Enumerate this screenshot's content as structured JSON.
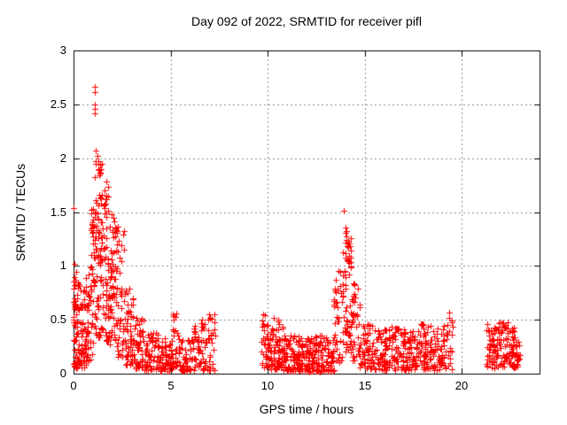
{
  "style": {
    "marker_color": "#ff0000",
    "grid_color": "#8c8c8c",
    "axis_color": "#000000",
    "background": "#ffffff",
    "text_color": "#000000"
  },
  "chart_data": {
    "type": "scatter",
    "title": "Day 092 of 2022, SRMTID for receiver pifl",
    "xlabel": "GPS time / hours",
    "ylabel": "SRMTID / TECUs",
    "xlim": [
      0,
      24
    ],
    "ylim": [
      0,
      3
    ],
    "grid": true,
    "legend": "none",
    "marker": "plus",
    "marker_size_px": 7,
    "xticks": [
      {
        "value": 0,
        "label": "0"
      },
      {
        "value": 5,
        "label": "5"
      },
      {
        "value": 10,
        "label": "10"
      },
      {
        "value": 15,
        "label": "15"
      },
      {
        "value": 20,
        "label": "20"
      }
    ],
    "yticks": [
      {
        "value": 0,
        "label": "0"
      },
      {
        "value": 0.5,
        "label": "0.5"
      },
      {
        "value": 1,
        "label": "1"
      },
      {
        "value": 1.5,
        "label": "1.5"
      },
      {
        "value": 2,
        "label": "2"
      },
      {
        "value": 2.5,
        "label": "2.5"
      },
      {
        "value": 3,
        "label": "3"
      }
    ],
    "data_gaps_hours": [
      [
        7.3,
        9.66
      ],
      [
        19.55,
        21.25
      ],
      [
        23.0,
        24.0
      ]
    ],
    "outlier_points": [
      [
        0.02,
        1.54
      ],
      [
        0.05,
        1.02
      ],
      [
        1.1,
        2.66
      ],
      [
        1.1,
        2.61
      ],
      [
        1.1,
        2.5
      ],
      [
        1.1,
        2.46
      ],
      [
        1.1,
        2.42
      ],
      [
        1.14,
        2.07
      ],
      [
        1.21,
        2.02
      ],
      [
        1.3,
        1.97
      ],
      [
        1.35,
        1.94
      ],
      [
        1.42,
        1.9
      ],
      [
        1.38,
        1.86
      ],
      [
        2.05,
        1.45
      ],
      [
        2.1,
        1.41
      ],
      [
        2.15,
        1.36
      ],
      [
        9.78,
        0.55
      ],
      [
        10.3,
        0.52
      ],
      [
        13.93,
        1.51
      ],
      [
        14.0,
        1.36
      ],
      [
        14.03,
        1.31
      ],
      [
        14.06,
        1.27
      ],
      [
        14.02,
        1.22
      ],
      [
        14.09,
        1.18
      ],
      [
        13.99,
        1.12
      ],
      [
        14.12,
        1.06
      ],
      [
        19.33,
        0.57
      ],
      [
        19.35,
        0.52
      ],
      [
        21.3,
        0.46
      ],
      [
        21.92,
        0.47
      ],
      [
        22.35,
        0.48
      ]
    ],
    "density_bands": [
      {
        "x0": 0.0,
        "x1": 0.1,
        "n": 30,
        "ymin": 0.05,
        "ymax": 1.02,
        "bias": 1.1
      },
      {
        "x0": 0.1,
        "x1": 0.3,
        "n": 38,
        "ymin": 0.05,
        "ymax": 0.95,
        "bias": 1.4
      },
      {
        "x0": 0.3,
        "x1": 0.62,
        "n": 40,
        "ymin": 0.05,
        "ymax": 0.78,
        "bias": 1.5
      },
      {
        "x0": 0.62,
        "x1": 0.86,
        "n": 34,
        "ymin": 0.08,
        "ymax": 0.95,
        "bias": 1.3
      },
      {
        "x0": 0.86,
        "x1": 1.1,
        "n": 45,
        "ymin": 0.1,
        "ymax": 1.58,
        "bias": 1.1
      },
      {
        "x0": 1.1,
        "x1": 1.45,
        "n": 70,
        "ymin": 0.28,
        "ymax": 1.98,
        "bias": 1.0
      },
      {
        "x0": 1.45,
        "x1": 1.8,
        "n": 62,
        "ymin": 0.3,
        "ymax": 1.83,
        "bias": 1.1
      },
      {
        "x0": 1.8,
        "x1": 2.2,
        "n": 58,
        "ymin": 0.25,
        "ymax": 1.48,
        "bias": 1.2
      },
      {
        "x0": 2.2,
        "x1": 2.6,
        "n": 50,
        "ymin": 0.15,
        "ymax": 1.42,
        "bias": 1.5
      },
      {
        "x0": 2.6,
        "x1": 3.1,
        "n": 52,
        "ymin": 0.08,
        "ymax": 0.8,
        "bias": 1.6
      },
      {
        "x0": 3.1,
        "x1": 3.6,
        "n": 46,
        "ymin": 0.05,
        "ymax": 0.52,
        "bias": 1.4
      },
      {
        "x0": 3.6,
        "x1": 4.4,
        "n": 60,
        "ymin": 0.03,
        "ymax": 0.38,
        "bias": 1.4
      },
      {
        "x0": 4.4,
        "x1": 5.1,
        "n": 55,
        "ymin": 0.02,
        "ymax": 0.33,
        "bias": 1.4
      },
      {
        "x0": 5.1,
        "x1": 5.45,
        "n": 30,
        "ymin": 0.05,
        "ymax": 0.56,
        "bias": 1.3
      },
      {
        "x0": 5.45,
        "x1": 6.2,
        "n": 55,
        "ymin": 0.02,
        "ymax": 0.33,
        "bias": 1.5
      },
      {
        "x0": 6.2,
        "x1": 6.55,
        "n": 26,
        "ymin": 0.05,
        "ymax": 0.45,
        "bias": 1.3
      },
      {
        "x0": 6.55,
        "x1": 7.3,
        "n": 50,
        "ymin": 0.03,
        "ymax": 0.56,
        "bias": 1.5
      },
      {
        "x0": 9.66,
        "x1": 10.15,
        "n": 42,
        "ymin": 0.05,
        "ymax": 0.58,
        "bias": 1.4
      },
      {
        "x0": 10.15,
        "x1": 10.5,
        "n": 34,
        "ymin": 0.04,
        "ymax": 0.44,
        "bias": 1.4
      },
      {
        "x0": 10.5,
        "x1": 10.8,
        "n": 30,
        "ymin": 0.05,
        "ymax": 0.52,
        "bias": 1.4
      },
      {
        "x0": 10.8,
        "x1": 11.6,
        "n": 80,
        "ymin": 0.02,
        "ymax": 0.36,
        "bias": 1.5
      },
      {
        "x0": 11.6,
        "x1": 12.4,
        "n": 80,
        "ymin": 0.02,
        "ymax": 0.34,
        "bias": 1.5
      },
      {
        "x0": 12.4,
        "x1": 13.4,
        "n": 90,
        "ymin": 0.02,
        "ymax": 0.36,
        "bias": 1.5
      },
      {
        "x0": 13.4,
        "x1": 13.85,
        "n": 40,
        "ymin": 0.08,
        "ymax": 0.96,
        "bias": 1.2
      },
      {
        "x0": 13.85,
        "x1": 14.35,
        "n": 65,
        "ymin": 0.2,
        "ymax": 1.34,
        "bias": 1.1
      },
      {
        "x0": 14.35,
        "x1": 14.75,
        "n": 34,
        "ymin": 0.12,
        "ymax": 0.86,
        "bias": 1.3
      },
      {
        "x0": 14.75,
        "x1": 15.4,
        "n": 55,
        "ymin": 0.05,
        "ymax": 0.46,
        "bias": 1.4
      },
      {
        "x0": 15.4,
        "x1": 16.2,
        "n": 65,
        "ymin": 0.03,
        "ymax": 0.43,
        "bias": 1.4
      },
      {
        "x0": 16.2,
        "x1": 17.0,
        "n": 65,
        "ymin": 0.03,
        "ymax": 0.46,
        "bias": 1.4
      },
      {
        "x0": 17.0,
        "x1": 17.8,
        "n": 65,
        "ymin": 0.03,
        "ymax": 0.43,
        "bias": 1.4
      },
      {
        "x0": 17.8,
        "x1": 18.4,
        "n": 52,
        "ymin": 0.04,
        "ymax": 0.48,
        "bias": 1.4
      },
      {
        "x0": 18.4,
        "x1": 19.0,
        "n": 48,
        "ymin": 0.03,
        "ymax": 0.43,
        "bias": 1.4
      },
      {
        "x0": 19.0,
        "x1": 19.55,
        "n": 30,
        "ymin": 0.04,
        "ymax": 0.5,
        "bias": 1.3
      },
      {
        "x0": 21.25,
        "x1": 21.55,
        "n": 26,
        "ymin": 0.05,
        "ymax": 0.46,
        "bias": 1.2
      },
      {
        "x0": 21.55,
        "x1": 21.95,
        "n": 34,
        "ymin": 0.04,
        "ymax": 0.46,
        "bias": 1.2
      },
      {
        "x0": 21.95,
        "x1": 22.4,
        "n": 40,
        "ymin": 0.05,
        "ymax": 0.48,
        "bias": 1.2
      },
      {
        "x0": 22.4,
        "x1": 22.75,
        "n": 34,
        "ymin": 0.04,
        "ymax": 0.43,
        "bias": 1.3
      },
      {
        "x0": 22.75,
        "x1": 23.0,
        "n": 18,
        "ymin": 0.05,
        "ymax": 0.3,
        "bias": 1.3
      }
    ]
  }
}
